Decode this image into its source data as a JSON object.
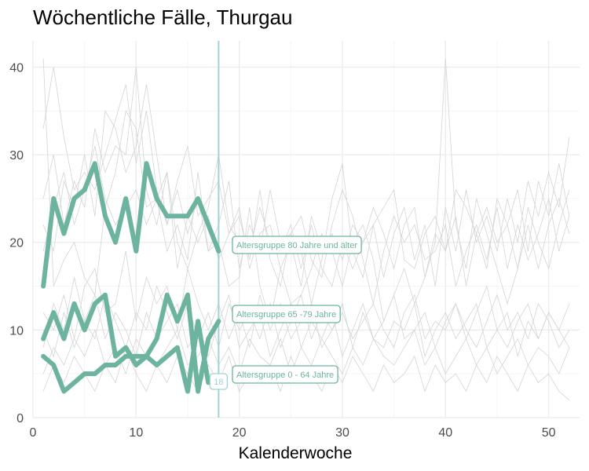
{
  "chart_data": {
    "type": "line",
    "title": "Wöchentliche Fälle, Thurgau",
    "xlabel": "Kalenderwoche",
    "ylabel": "",
    "xlim": [
      0,
      53
    ],
    "ylim": [
      0,
      43
    ],
    "x_ticks": [
      0,
      10,
      20,
      30,
      40,
      50
    ],
    "y_ticks": [
      0,
      10,
      20,
      30,
      40
    ],
    "grid": true,
    "highlight_color": "#6cb4a0",
    "vline_color": "#9fd3d6",
    "background_color": "#d4d4d4",
    "current_week": {
      "x": 18,
      "label": "18"
    },
    "series": [
      {
        "name": "Altersgruppe 80 Jahre und älter",
        "x": [
          1,
          2,
          3,
          4,
          5,
          6,
          7,
          8,
          9,
          10,
          11,
          12,
          13,
          14,
          15,
          16,
          17,
          18
        ],
        "values": [
          15,
          25,
          21,
          25,
          26,
          29,
          23,
          20,
          25,
          19,
          29,
          25,
          23,
          23,
          23,
          25,
          22,
          19
        ]
      },
      {
        "name": "Altersgruppe 65 -79 Jahre",
        "x": [
          1,
          2,
          3,
          4,
          5,
          6,
          7,
          8,
          9,
          10,
          11,
          12,
          13,
          14,
          15,
          16,
          17,
          18
        ],
        "values": [
          9,
          12,
          9,
          13,
          10,
          13,
          14,
          7,
          8,
          6,
          7,
          9,
          14,
          11,
          14,
          3,
          9,
          11
        ]
      },
      {
        "name": "Altersgruppe 0 - 64 Jahre",
        "x": [
          1,
          2,
          3,
          4,
          5,
          6,
          7,
          8,
          9,
          10,
          11,
          12,
          13,
          14,
          15,
          16,
          17
        ],
        "values": [
          7,
          6,
          3,
          4,
          5,
          5,
          6,
          6,
          7,
          7,
          7,
          6,
          7,
          8,
          3,
          11,
          4
        ]
      }
    ],
    "background_series": [
      {
        "values": [
          41,
          15,
          18,
          20,
          16,
          14,
          24,
          28,
          35,
          33,
          24,
          25,
          19,
          22,
          18,
          28,
          19,
          20,
          15,
          16,
          24,
          15,
          11,
          17,
          13,
          14,
          17,
          21,
          19,
          15,
          20,
          22,
          18,
          11,
          14,
          17,
          13,
          16,
          20,
          41,
          22,
          17,
          25,
          21,
          17,
          13,
          17,
          22,
          17,
          22,
          25,
          21
        ]
      },
      {
        "values": [
          33,
          40,
          32,
          26,
          28,
          26,
          30,
          34,
          38,
          29,
          35,
          26,
          22,
          27,
          31,
          23,
          25,
          27,
          21,
          23,
          18,
          26,
          18,
          15,
          21,
          19,
          13,
          18,
          25,
          29,
          19,
          16,
          22,
          24,
          26,
          18,
          17,
          21,
          23,
          19,
          26,
          24,
          21,
          17,
          25,
          22,
          26,
          19,
          27,
          23,
          29,
          23
        ]
      },
      {
        "values": [
          25,
          30,
          22,
          27,
          24,
          33,
          28,
          31,
          30,
          40,
          26,
          22,
          28,
          20,
          17,
          21,
          24,
          30,
          22,
          20,
          19,
          24,
          20,
          19,
          22,
          17,
          22,
          17,
          15,
          20,
          17,
          20,
          22,
          16,
          21,
          24,
          18,
          22,
          15,
          24,
          19,
          26,
          20,
          23,
          19,
          25,
          20,
          27,
          23,
          28,
          24,
          32
        ]
      },
      {
        "values": [
          22,
          19,
          27,
          24,
          30,
          23,
          35,
          33,
          28,
          31,
          38,
          30,
          22,
          26,
          21,
          25,
          19,
          22,
          27,
          17,
          22,
          19,
          26,
          20,
          21,
          23,
          18,
          16,
          22,
          26,
          23,
          18,
          13,
          19,
          23,
          20,
          22,
          18,
          19,
          22,
          15,
          19,
          22,
          18,
          24,
          17,
          22,
          18,
          21,
          25,
          19,
          23
        ]
      },
      {
        "values": [
          19,
          24,
          28,
          22,
          26,
          31,
          25,
          22,
          24,
          26,
          22,
          25,
          28,
          17,
          23,
          20,
          23,
          18,
          21,
          24,
          17,
          21,
          22,
          17,
          20,
          15,
          23,
          19,
          21,
          18,
          22,
          20,
          24,
          21,
          17,
          22,
          24,
          16,
          21,
          19,
          23,
          15,
          21,
          24,
          20,
          22,
          17,
          24,
          20,
          17,
          22,
          26
        ]
      },
      {
        "values": [
          12,
          10,
          14,
          9,
          15,
          17,
          12,
          13,
          19,
          11,
          16,
          13,
          15,
          10,
          17,
          13,
          10,
          13,
          9,
          12,
          8,
          14,
          10,
          13,
          9,
          11,
          13,
          8,
          10,
          12,
          9,
          11,
          13,
          10,
          8,
          12,
          14,
          9,
          11,
          10,
          13,
          9,
          12,
          15,
          10,
          8,
          11,
          13,
          9,
          12,
          10,
          13
        ]
      },
      {
        "values": [
          8,
          13,
          10,
          16,
          11,
          9,
          14,
          11,
          8,
          12,
          10,
          15,
          12,
          9,
          13,
          9,
          12,
          8,
          13,
          10,
          12,
          9,
          13,
          8,
          11,
          14,
          9,
          12,
          10,
          13,
          8,
          12,
          9,
          11,
          14,
          9,
          10,
          12,
          8,
          11,
          13,
          10,
          8,
          11,
          14,
          10,
          12,
          9,
          13,
          11,
          8,
          10
        ]
      },
      {
        "values": [
          10,
          7,
          12,
          8,
          11,
          14,
          9,
          12,
          10,
          7,
          12,
          9,
          11,
          13,
          8,
          10,
          7,
          11,
          14,
          8,
          10,
          12,
          7,
          10,
          13,
          8,
          11,
          9,
          12,
          7,
          10,
          13,
          9,
          8,
          11,
          10,
          13,
          7,
          10,
          12,
          9,
          11,
          13,
          8,
          10,
          12,
          7,
          11,
          9,
          12,
          10,
          8
        ]
      },
      {
        "values": [
          5,
          8,
          6,
          9,
          7,
          10,
          6,
          8,
          5,
          9,
          7,
          6,
          8,
          10,
          6,
          7,
          9,
          6,
          8,
          5,
          9,
          7,
          6,
          9,
          5,
          8,
          6,
          9,
          7,
          5,
          8,
          6,
          9,
          7,
          6,
          8,
          10,
          6,
          8,
          5,
          7,
          9,
          6,
          8,
          5,
          7,
          9,
          6,
          8,
          7,
          5,
          8
        ]
      },
      {
        "values": [
          3,
          6,
          4,
          7,
          5,
          3,
          6,
          4,
          8,
          5,
          3,
          6,
          4,
          7,
          5,
          3,
          6,
          4,
          7,
          3,
          5,
          4,
          6,
          3,
          7,
          4,
          5,
          3,
          6,
          4,
          7,
          5,
          3,
          6,
          4,
          5,
          7,
          3,
          6,
          4,
          5,
          3,
          6,
          4,
          7,
          5,
          3,
          6,
          4,
          5,
          3,
          2
        ]
      }
    ]
  }
}
